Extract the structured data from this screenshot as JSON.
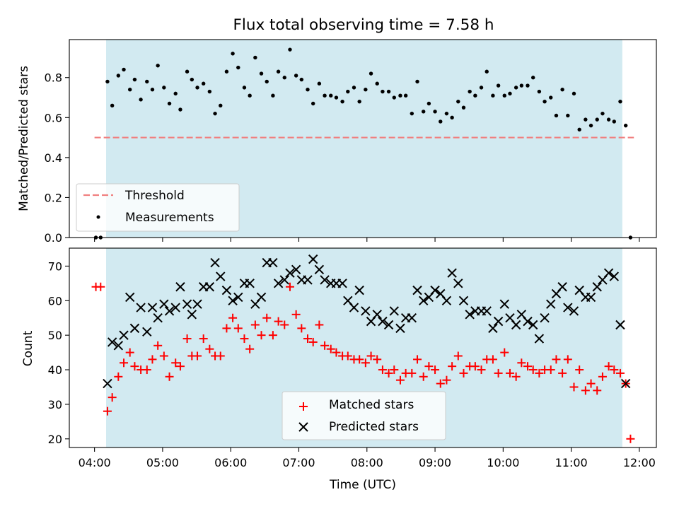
{
  "figure": {
    "title": "Flux total observing time = 7.58 h",
    "xlabel": "Time (UTC)",
    "x_ticks": [
      "04:00",
      "05:00",
      "06:00",
      "07:00",
      "08:00",
      "09:00",
      "10:00",
      "11:00",
      "12:00"
    ],
    "x_range_hours": [
      3.63,
      12.25
    ],
    "observing_window_hours": [
      4.17,
      11.75
    ],
    "colors": {
      "window": "#add8e6",
      "threshold": "#f08080",
      "measurements": "#000000",
      "matched": "#ff0000",
      "predicted": "#000000"
    }
  },
  "chart_data": [
    {
      "type": "scatter",
      "ylabel": "Matched/Predicted stars",
      "ylim": [
        0,
        0.99
      ],
      "y_ticks": [
        0.0,
        0.2,
        0.4,
        0.6,
        0.8
      ],
      "y_tick_labels": [
        "0.0",
        "0.2",
        "0.4",
        "0.6",
        "0.8"
      ],
      "legend": {
        "placement": "lower-left",
        "entries": [
          "Threshold",
          "Measurements"
        ]
      },
      "threshold": {
        "name": "Threshold",
        "value": 0.5,
        "x": [
          4.0,
          11.92
        ]
      },
      "series": [
        {
          "name": "Measurements",
          "x": [
            4.02,
            4.09,
            4.19,
            4.26,
            4.35,
            4.43,
            4.52,
            4.59,
            4.68,
            4.77,
            4.85,
            4.93,
            5.02,
            5.1,
            5.19,
            5.26,
            5.36,
            5.43,
            5.51,
            5.6,
            5.69,
            5.77,
            5.85,
            5.94,
            6.03,
            6.11,
            6.2,
            6.28,
            6.36,
            6.45,
            6.53,
            6.62,
            6.7,
            6.79,
            6.87,
            6.96,
            7.04,
            7.13,
            7.21,
            7.3,
            7.38,
            7.47,
            7.55,
            7.64,
            7.72,
            7.81,
            7.89,
            7.98,
            8.06,
            8.15,
            8.23,
            8.32,
            8.4,
            8.49,
            8.57,
            8.66,
            8.74,
            8.83,
            8.91,
            9.0,
            9.08,
            9.17,
            9.25,
            9.34,
            9.42,
            9.51,
            9.59,
            9.68,
            9.76,
            9.85,
            9.93,
            10.02,
            10.1,
            10.19,
            10.27,
            10.36,
            10.44,
            10.53,
            10.61,
            10.7,
            10.78,
            10.87,
            10.95,
            11.04,
            11.12,
            11.21,
            11.29,
            11.38,
            11.46,
            11.55,
            11.63,
            11.72,
            11.8,
            11.87
          ],
          "y": [
            0.0,
            0.0,
            0.78,
            0.66,
            0.81,
            0.84,
            0.74,
            0.79,
            0.69,
            0.78,
            0.74,
            0.86,
            0.75,
            0.67,
            0.72,
            0.64,
            0.83,
            0.79,
            0.75,
            0.77,
            0.73,
            0.62,
            0.66,
            0.83,
            0.92,
            0.85,
            0.75,
            0.71,
            0.9,
            0.82,
            0.78,
            0.71,
            0.83,
            0.8,
            0.94,
            0.81,
            0.79,
            0.74,
            0.67,
            0.77,
            0.71,
            0.71,
            0.7,
            0.68,
            0.73,
            0.75,
            0.68,
            0.74,
            0.82,
            0.77,
            0.73,
            0.73,
            0.7,
            0.71,
            0.71,
            0.62,
            0.78,
            0.63,
            0.67,
            0.63,
            0.58,
            0.62,
            0.6,
            0.68,
            0.65,
            0.73,
            0.71,
            0.75,
            0.83,
            0.71,
            0.76,
            0.71,
            0.72,
            0.75,
            0.76,
            0.76,
            0.8,
            0.73,
            0.68,
            0.7,
            0.61,
            0.74,
            0.61,
            0.72,
            0.54,
            0.59,
            0.56,
            0.59,
            0.62,
            0.59,
            0.58,
            0.68,
            0.56,
            0.0
          ]
        }
      ]
    },
    {
      "type": "scatter",
      "ylabel": "Count",
      "ylim": [
        17.5,
        75.2
      ],
      "y_ticks": [
        20,
        30,
        40,
        50,
        60,
        70
      ],
      "y_tick_labels": [
        "20",
        "30",
        "40",
        "50",
        "60",
        "70"
      ],
      "legend": {
        "placement": "lower-center",
        "entries": [
          "Matched stars",
          "Predicted stars"
        ]
      },
      "series": [
        {
          "name": "Matched stars",
          "marker": "plus",
          "x": [
            4.02,
            4.09,
            4.19,
            4.26,
            4.35,
            4.43,
            4.52,
            4.59,
            4.68,
            4.77,
            4.85,
            4.93,
            5.02,
            5.1,
            5.19,
            5.26,
            5.36,
            5.43,
            5.51,
            5.6,
            5.69,
            5.77,
            5.85,
            5.94,
            6.03,
            6.11,
            6.2,
            6.28,
            6.36,
            6.45,
            6.53,
            6.62,
            6.7,
            6.79,
            6.87,
            6.96,
            7.04,
            7.13,
            7.21,
            7.3,
            7.38,
            7.47,
            7.55,
            7.64,
            7.72,
            7.81,
            7.89,
            7.98,
            8.06,
            8.15,
            8.23,
            8.32,
            8.4,
            8.49,
            8.57,
            8.66,
            8.74,
            8.83,
            8.91,
            9.0,
            9.08,
            9.17,
            9.25,
            9.34,
            9.42,
            9.51,
            9.59,
            9.68,
            9.76,
            9.85,
            9.93,
            10.02,
            10.1,
            10.19,
            10.27,
            10.36,
            10.44,
            10.53,
            10.61,
            10.7,
            10.78,
            10.87,
            10.95,
            11.04,
            11.12,
            11.21,
            11.29,
            11.38,
            11.46,
            11.55,
            11.63,
            11.72,
            11.8,
            11.87
          ],
          "y": [
            64,
            64,
            28,
            32,
            38,
            42,
            45,
            41,
            40,
            40,
            43,
            47,
            44,
            38,
            42,
            41,
            49,
            44,
            44,
            49,
            46,
            44,
            44,
            52,
            55,
            52,
            49,
            46,
            53,
            50,
            55,
            50,
            54,
            53,
            64,
            56,
            52,
            49,
            48,
            53,
            47,
            46,
            45,
            44,
            44,
            43,
            43,
            42,
            44,
            43,
            40,
            39,
            40,
            37,
            39,
            39,
            43,
            38,
            41,
            40,
            36,
            37,
            41,
            44,
            39,
            41,
            41,
            40,
            43,
            43,
            39,
            45,
            39,
            38,
            42,
            41,
            40,
            39,
            40,
            40,
            43,
            39,
            43,
            35,
            40,
            34,
            36,
            34,
            38,
            41,
            40,
            39,
            36,
            20
          ]
        },
        {
          "name": "Predicted stars",
          "marker": "x",
          "x": [
            4.19,
            4.26,
            4.35,
            4.43,
            4.52,
            4.59,
            4.68,
            4.77,
            4.85,
            4.93,
            5.02,
            5.1,
            5.19,
            5.26,
            5.36,
            5.43,
            5.51,
            5.6,
            5.69,
            5.77,
            5.85,
            5.94,
            6.03,
            6.11,
            6.2,
            6.28,
            6.36,
            6.45,
            6.53,
            6.62,
            6.7,
            6.79,
            6.87,
            6.96,
            7.04,
            7.13,
            7.21,
            7.3,
            7.38,
            7.47,
            7.55,
            7.64,
            7.72,
            7.81,
            7.89,
            7.98,
            8.06,
            8.15,
            8.23,
            8.32,
            8.4,
            8.49,
            8.57,
            8.66,
            8.74,
            8.83,
            8.91,
            9.0,
            9.08,
            9.17,
            9.25,
            9.34,
            9.42,
            9.51,
            9.59,
            9.68,
            9.76,
            9.85,
            9.93,
            10.02,
            10.1,
            10.19,
            10.27,
            10.36,
            10.44,
            10.53,
            10.61,
            10.7,
            10.78,
            10.87,
            10.95,
            11.04,
            11.12,
            11.21,
            11.29,
            11.38,
            11.46,
            11.55,
            11.63,
            11.72,
            11.8
          ],
          "y": [
            36,
            48,
            47,
            50,
            61,
            52,
            58,
            51,
            58,
            55,
            59,
            57,
            58,
            64,
            59,
            56,
            59,
            64,
            64,
            71,
            67,
            63,
            60,
            61,
            65,
            65,
            59,
            61,
            71,
            71,
            65,
            66,
            68,
            69,
            66,
            66,
            72,
            69,
            66,
            65,
            65,
            65,
            60,
            58,
            63,
            57,
            54,
            56,
            54,
            53,
            57,
            52,
            55,
            55,
            63,
            60,
            61,
            63,
            62,
            60,
            68,
            65,
            60,
            56,
            57,
            57,
            57,
            52,
            54,
            59,
            55,
            53,
            56,
            54,
            53,
            49,
            55,
            59,
            62,
            64,
            58,
            57,
            63,
            61,
            61,
            64,
            66,
            68,
            67,
            53,
            36
          ]
        }
      ]
    }
  ]
}
